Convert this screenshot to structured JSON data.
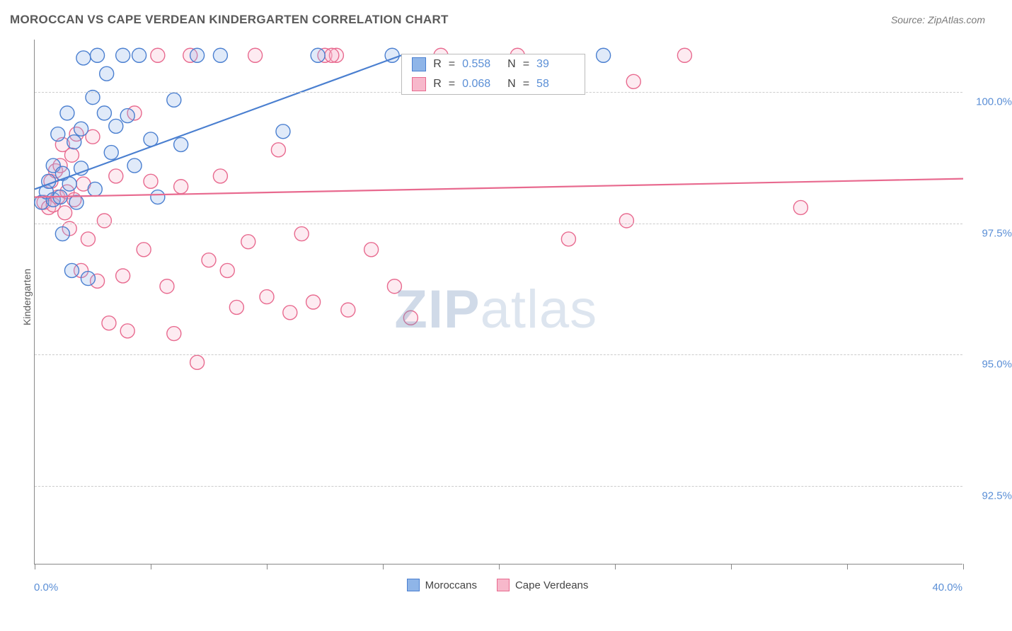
{
  "title": "MOROCCAN VS CAPE VERDEAN KINDERGARTEN CORRELATION CHART",
  "source_label": "Source: ZipAtlas.com",
  "y_axis_label": "Kindergarten",
  "chart": {
    "type": "scatter",
    "xlim": [
      0,
      40
    ],
    "ylim": [
      91,
      101
    ],
    "xtick_positions": [
      0,
      5,
      10,
      15,
      20,
      25,
      30,
      35,
      40
    ],
    "xtick_labels": {
      "0": "0.0%",
      "40": "40.0%"
    },
    "ytick_positions": [
      92.5,
      95.0,
      97.5,
      100.0
    ],
    "ytick_labels": [
      "92.5%",
      "95.0%",
      "97.5%",
      "100.0%"
    ],
    "grid_color": "#cccccc",
    "axis_color": "#888888",
    "background_color": "#ffffff",
    "marker_radius": 10,
    "marker_fill_opacity": 0.28,
    "marker_stroke_width": 1.4,
    "line_width": 2.2,
    "series": [
      {
        "name": "Moroccans",
        "color_stroke": "#4a7fd0",
        "color_fill": "#8fb5e8",
        "r_value": "0.558",
        "n_value": "39",
        "trend": {
          "x1": 0,
          "y1": 98.15,
          "x2": 15.8,
          "y2": 100.7
        },
        "points": [
          [
            0.3,
            97.9
          ],
          [
            0.5,
            98.1
          ],
          [
            0.6,
            98.3
          ],
          [
            0.8,
            97.95
          ],
          [
            0.8,
            98.6
          ],
          [
            1.0,
            99.2
          ],
          [
            1.1,
            98.0
          ],
          [
            1.2,
            98.45
          ],
          [
            1.2,
            97.3
          ],
          [
            1.4,
            99.6
          ],
          [
            1.5,
            98.25
          ],
          [
            1.6,
            96.6
          ],
          [
            1.7,
            99.05
          ],
          [
            1.8,
            97.9
          ],
          [
            2.0,
            98.55
          ],
          [
            2.0,
            99.3
          ],
          [
            2.1,
            100.65
          ],
          [
            2.3,
            96.45
          ],
          [
            2.5,
            99.9
          ],
          [
            2.6,
            98.15
          ],
          [
            2.7,
            100.7
          ],
          [
            3.0,
            99.6
          ],
          [
            3.1,
            100.35
          ],
          [
            3.3,
            98.85
          ],
          [
            3.5,
            99.35
          ],
          [
            3.8,
            100.7
          ],
          [
            4.0,
            99.55
          ],
          [
            4.3,
            98.6
          ],
          [
            4.5,
            100.7
          ],
          [
            5.0,
            99.1
          ],
          [
            5.3,
            98.0
          ],
          [
            6.0,
            99.85
          ],
          [
            6.3,
            99.0
          ],
          [
            7.0,
            100.7
          ],
          [
            8.0,
            100.7
          ],
          [
            10.7,
            99.25
          ],
          [
            12.2,
            100.7
          ],
          [
            15.4,
            100.7
          ],
          [
            24.5,
            100.7
          ]
        ]
      },
      {
        "name": "Cape Verdeans",
        "color_stroke": "#e86a8f",
        "color_fill": "#f7b8cb",
        "r_value": "0.068",
        "n_value": "58",
        "trend": {
          "x1": 0,
          "y1": 98.0,
          "x2": 40,
          "y2": 98.35
        },
        "points": [
          [
            0.4,
            97.9
          ],
          [
            0.6,
            97.8
          ],
          [
            0.7,
            98.3
          ],
          [
            0.8,
            97.85
          ],
          [
            0.9,
            98.5
          ],
          [
            1.0,
            98.0
          ],
          [
            1.1,
            98.6
          ],
          [
            1.2,
            99.0
          ],
          [
            1.3,
            97.7
          ],
          [
            1.4,
            98.1
          ],
          [
            1.5,
            97.4
          ],
          [
            1.6,
            98.8
          ],
          [
            1.7,
            97.95
          ],
          [
            1.8,
            99.2
          ],
          [
            2.0,
            96.6
          ],
          [
            2.1,
            98.25
          ],
          [
            2.3,
            97.2
          ],
          [
            2.5,
            99.15
          ],
          [
            2.7,
            96.4
          ],
          [
            3.0,
            97.55
          ],
          [
            3.2,
            95.6
          ],
          [
            3.5,
            98.4
          ],
          [
            3.8,
            96.5
          ],
          [
            4.0,
            95.45
          ],
          [
            4.3,
            99.6
          ],
          [
            4.7,
            97.0
          ],
          [
            5.0,
            98.3
          ],
          [
            5.3,
            100.7
          ],
          [
            5.7,
            96.3
          ],
          [
            6.0,
            95.4
          ],
          [
            6.3,
            98.2
          ],
          [
            6.7,
            100.7
          ],
          [
            7.0,
            94.85
          ],
          [
            7.5,
            96.8
          ],
          [
            8.0,
            98.4
          ],
          [
            8.3,
            96.6
          ],
          [
            8.7,
            95.9
          ],
          [
            9.2,
            97.15
          ],
          [
            9.5,
            100.7
          ],
          [
            10.0,
            96.1
          ],
          [
            10.5,
            98.9
          ],
          [
            11.0,
            95.8
          ],
          [
            11.5,
            97.3
          ],
          [
            12.0,
            96.0
          ],
          [
            12.5,
            100.7
          ],
          [
            13.0,
            100.7
          ],
          [
            13.5,
            95.85
          ],
          [
            14.5,
            97.0
          ],
          [
            15.5,
            96.3
          ],
          [
            16.2,
            95.7
          ],
          [
            17.5,
            100.7
          ],
          [
            12.8,
            100.7
          ],
          [
            20.8,
            100.7
          ],
          [
            23.0,
            97.2
          ],
          [
            25.5,
            97.55
          ],
          [
            25.8,
            100.2
          ],
          [
            28.0,
            100.7
          ],
          [
            33.0,
            97.8
          ]
        ]
      }
    ]
  },
  "legend": {
    "items": [
      {
        "label": "Moroccans",
        "fill": "#8fb5e8",
        "stroke": "#4a7fd0"
      },
      {
        "label": "Cape Verdeans",
        "fill": "#f7b8cb",
        "stroke": "#e86a8f"
      }
    ]
  },
  "stats_box": {
    "rows": [
      {
        "fill": "#8fb5e8",
        "stroke": "#4a7fd0",
        "r": "0.558",
        "n": "39"
      },
      {
        "fill": "#f7b8cb",
        "stroke": "#e86a8f",
        "r": "0.068",
        "n": "58"
      }
    ]
  },
  "watermark": {
    "part1": "ZIP",
    "part2": "atlas"
  }
}
